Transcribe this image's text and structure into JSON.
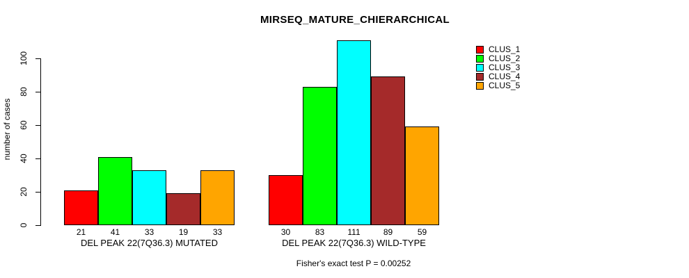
{
  "title": "MIRSEQ_MATURE_CHIERARCHICAL",
  "chart_data": {
    "type": "bar",
    "title": "MIRSEQ_MATURE_CHIERARCHICAL",
    "xlabel": "",
    "ylabel": "number of cases",
    "yticks": [
      0,
      20,
      40,
      60,
      80,
      100
    ],
    "ylim": [
      0,
      111
    ],
    "grid": false,
    "legend_position": "right",
    "categories": [
      "DEL PEAK 22(7Q36.3) MUTATED",
      "DEL PEAK 22(7Q36.3) WILD-TYPE"
    ],
    "series": [
      {
        "name": "CLUS_1",
        "color": "#ff0000",
        "values": [
          21,
          30
        ]
      },
      {
        "name": "CLUS_2",
        "color": "#00ff00",
        "values": [
          41,
          83
        ]
      },
      {
        "name": "CLUS_3",
        "color": "#00ffff",
        "values": [
          33,
          111
        ]
      },
      {
        "name": "CLUS_4",
        "color": "#a52a2a",
        "values": [
          19,
          89
        ]
      },
      {
        "name": "CLUS_5",
        "color": "#ffa500",
        "values": [
          33,
          59
        ]
      }
    ],
    "bar_value_labels": {
      "DEL PEAK 22(7Q36.3) MUTATED": [
        21,
        41,
        33,
        19,
        33
      ],
      "DEL PEAK 22(7Q36.3) WILD-TYPE": [
        30,
        83,
        111,
        89,
        59
      ]
    },
    "annotation": "Fisher's exact test P = 0.00252"
  },
  "colors": {
    "background": "#ffffff",
    "axis": "#000000",
    "bar_border": "#000000",
    "text": "#000000"
  }
}
